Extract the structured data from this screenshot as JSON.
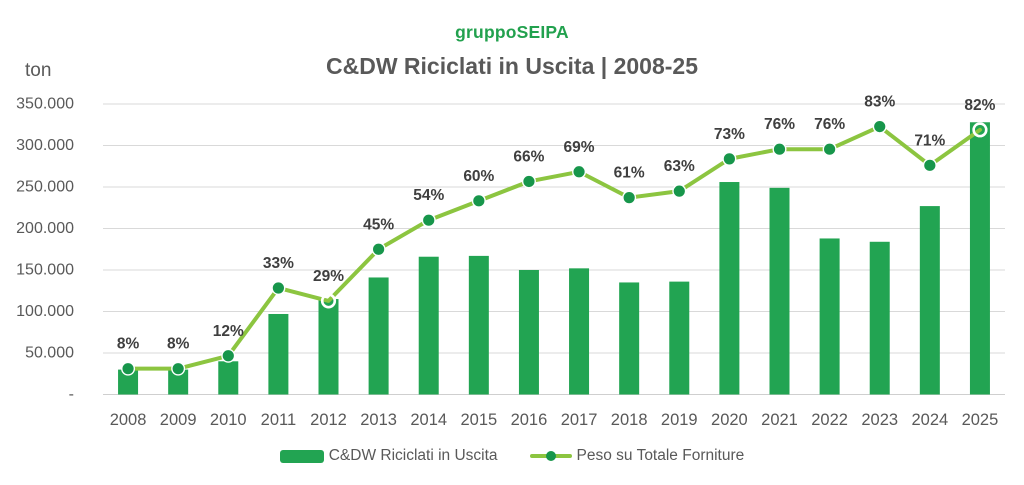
{
  "header": {
    "brand": "gruppoSEIPA",
    "title": "C&DW Riciclati in Uscita | 2008-25"
  },
  "axes": {
    "y_unit": "ton",
    "y_tick_labels": [
      "-",
      "50.000",
      "100.000",
      "150.000",
      "200.000",
      "250.000",
      "300.000",
      "350.000"
    ]
  },
  "chart_data": {
    "type": "combo-bar-line",
    "title": "C&DW Riciclati in Uscita | 2008-25",
    "ylabel": "ton",
    "grid": true,
    "legend_position": "bottom",
    "categories": [
      "2008",
      "2009",
      "2010",
      "2011",
      "2012",
      "2013",
      "2014",
      "2015",
      "2016",
      "2017",
      "2018",
      "2019",
      "2020",
      "2021",
      "2022",
      "2023",
      "2024",
      "2025"
    ],
    "series": [
      {
        "name": "C&DW Riciclati in Uscita",
        "type": "bar",
        "yaxis": "left",
        "unit": "ton",
        "values": [
          30000,
          30000,
          40000,
          97000,
          115000,
          141000,
          166000,
          167000,
          150000,
          152000,
          135000,
          136000,
          256000,
          249000,
          188000,
          184000,
          227000,
          328000
        ]
      },
      {
        "name": "Peso su Totale Forniture",
        "type": "line",
        "yaxis": "right",
        "unit": "%",
        "values": [
          8,
          8,
          12,
          33,
          29,
          45,
          54,
          60,
          66,
          69,
          61,
          63,
          73,
          76,
          76,
          83,
          71,
          82
        ],
        "point_labels": [
          "8%",
          "8%",
          "12%",
          "33%",
          "29%",
          "45%",
          "54%",
          "60%",
          "66%",
          "69%",
          "61%",
          "63%",
          "73%",
          "76%",
          "76%",
          "83%",
          "71%",
          "82%"
        ],
        "hollow_marker_indices": [
          4,
          17
        ]
      }
    ],
    "y_left": {
      "min": 0,
      "max": 350000,
      "tick_step": 50000
    },
    "y_right": {
      "min": 0,
      "max": 90,
      "shown": false
    }
  },
  "legend": {
    "items": [
      {
        "label": "C&DW Riciclati in Uscita",
        "swatch": "bar"
      },
      {
        "label": "Peso su Totale Forniture",
        "swatch": "line-marker"
      }
    ]
  },
  "colors": {
    "bar": "#22a452",
    "line": "#8cc540",
    "marker": "#17964b",
    "brand": "#22a14e",
    "title_text": "#595959",
    "axis_text": "#595959",
    "pct_label": "#3f3f3f",
    "grid": "#d9d9d9",
    "axis_line": "#cfcfcf",
    "marker_ring": "#ffffff"
  }
}
